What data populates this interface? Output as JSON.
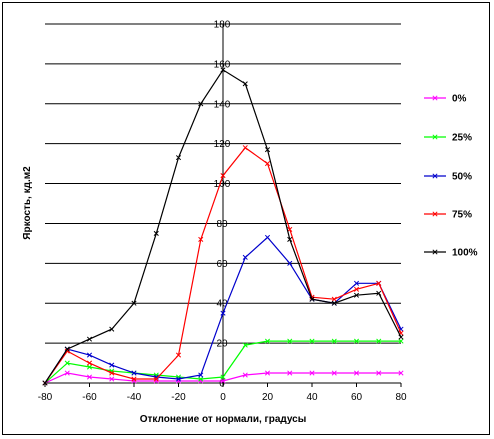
{
  "chart_data": {
    "type": "line",
    "title": "",
    "xlabel": "Отклонение от нормали, градусы",
    "ylabel": "Яркость, кд.м2",
    "xlim": [
      -80,
      80
    ],
    "ylim": [
      0,
      180
    ],
    "x_ticks": [
      "-80",
      "-60",
      "-40",
      "-20",
      "0",
      "20",
      "40",
      "60",
      "80"
    ],
    "y_ticks": [
      "0",
      "20",
      "40",
      "60",
      "80",
      "100",
      "120",
      "140",
      "160",
      "180"
    ],
    "grid": "horizontal",
    "legend_position": "right",
    "x": [
      -80,
      -70,
      -60,
      -50,
      -40,
      -30,
      -20,
      -10,
      0,
      10,
      20,
      30,
      40,
      50,
      60,
      70,
      80
    ],
    "series": [
      {
        "name": "0%",
        "color": "#ff00ff",
        "values": [
          0,
          5,
          3,
          2,
          1,
          1,
          1,
          1,
          1,
          4,
          5,
          5,
          5,
          5,
          5,
          5,
          5
        ]
      },
      {
        "name": "25%",
        "color": "#00ff00",
        "values": [
          0,
          10,
          8,
          6,
          5,
          4,
          3,
          2,
          3,
          19,
          21,
          21,
          21,
          21,
          21,
          21,
          21
        ]
      },
      {
        "name": "50%",
        "color": "#0000cc",
        "values": [
          0,
          17,
          14,
          9,
          5,
          3,
          2,
          4,
          35,
          63,
          73,
          60,
          42,
          40,
          50,
          50,
          27
        ]
      },
      {
        "name": "75%",
        "color": "#ff0000",
        "values": [
          0,
          16,
          10,
          5,
          2,
          2,
          14,
          72,
          104,
          118,
          110,
          77,
          43,
          42,
          47,
          50,
          25
        ]
      },
      {
        "name": "100%",
        "color": "#000000",
        "values": [
          0,
          17,
          22,
          27,
          40,
          75,
          113,
          140,
          157,
          150,
          117,
          72,
          42,
          40,
          44,
          45,
          23
        ]
      }
    ]
  }
}
